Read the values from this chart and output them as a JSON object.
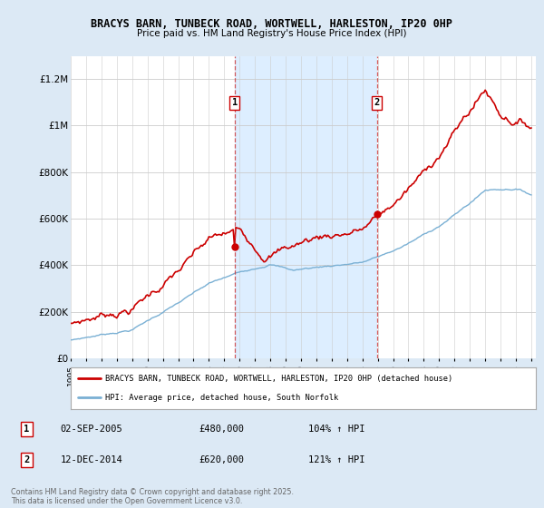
{
  "title": "BRACYS BARN, TUNBECK ROAD, WORTWELL, HARLESTON, IP20 0HP",
  "subtitle": "Price paid vs. HM Land Registry's House Price Index (HPI)",
  "background_color": "#dce9f5",
  "plot_bg_color": "#ffffff",
  "shade_color": "#ddeeff",
  "ylim": [
    0,
    1300000
  ],
  "yticks": [
    0,
    200000,
    400000,
    600000,
    800000,
    1000000,
    1200000
  ],
  "ytick_labels": [
    "£0",
    "£200K",
    "£400K",
    "£600K",
    "£800K",
    "£1M",
    "£1.2M"
  ],
  "x_start_year": 1995,
  "x_end_year": 2025,
  "marker1_year": 2005.67,
  "marker1_price": 480000,
  "marker2_year": 2014.95,
  "marker2_price": 620000,
  "line1_color": "#cc0000",
  "line2_color": "#7ab0d4",
  "legend_label1": "BRACYS BARN, TUNBECK ROAD, WORTWELL, HARLESTON, IP20 0HP (detached house)",
  "legend_label2": "HPI: Average price, detached house, South Norfolk",
  "footer": "Contains HM Land Registry data © Crown copyright and database right 2025.\nThis data is licensed under the Open Government Licence v3.0.",
  "table_row1": [
    "1",
    "02-SEP-2005",
    "£480,000",
    "104% ↑ HPI"
  ],
  "table_row2": [
    "2",
    "12-DEC-2014",
    "£620,000",
    "121% ↑ HPI"
  ]
}
